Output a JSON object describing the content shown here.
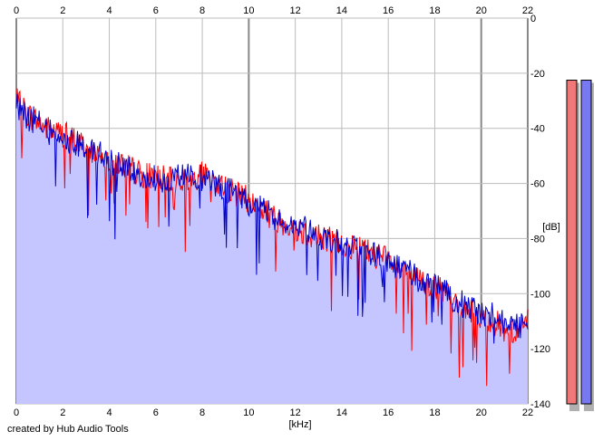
{
  "footer_text": "created by Hub Audio Tools",
  "chart_data": {
    "type": "line",
    "title": "",
    "xlabel": "[kHz]",
    "ylabel": "[dB]",
    "x_unit": "kHz",
    "y_unit": "dB",
    "xlim": [
      0,
      22
    ],
    "ylim": [
      -140,
      0
    ],
    "x_ticks": [
      "0",
      "2",
      "4",
      "6",
      "8",
      "10",
      "12",
      "14",
      "16",
      "18",
      "20",
      "22"
    ],
    "y_ticks": [
      "0",
      "-20",
      "-40",
      "-60",
      "-80",
      "-100",
      "-120",
      "-140"
    ],
    "grid": true,
    "fill_under": true,
    "colors": {
      "fill": "#c5c5ff",
      "series_red": "#ff0000",
      "series_blue": "#0000cc",
      "grid": "#bbbbbb",
      "grid_major": "#888888",
      "meter_red": "#f07878",
      "meter_blue": "#7878f0"
    },
    "series": [
      {
        "color": "red",
        "x": [
          0,
          0.5,
          1,
          1.5,
          2,
          2.5,
          3,
          3.5,
          4,
          4.5,
          5,
          5.5,
          6,
          6.5,
          7,
          7.5,
          8,
          8.5,
          9,
          9.5,
          10,
          10.5,
          11,
          11.5,
          12,
          12.5,
          13,
          13.5,
          14,
          14.5,
          15,
          15.5,
          16,
          16.5,
          17,
          17.5,
          18,
          18.5,
          19,
          19.5,
          20,
          20.5,
          21,
          21.5,
          22
        ],
        "y": [
          -30,
          -35,
          -38,
          -41,
          -42,
          -44,
          -47,
          -49,
          -51,
          -53,
          -55,
          -57,
          -57,
          -59,
          -59,
          -58,
          -57,
          -59,
          -62,
          -64,
          -66,
          -69,
          -72,
          -74,
          -76,
          -78,
          -79,
          -80,
          -82,
          -83,
          -84,
          -86,
          -88,
          -91,
          -93,
          -96,
          -98,
          -100,
          -104,
          -106,
          -108,
          -110,
          -113,
          -114,
          -110
        ]
      },
      {
        "color": "blue",
        "x": [
          0,
          0.5,
          1,
          1.5,
          2,
          2.5,
          3,
          3.5,
          4,
          4.5,
          5,
          5.5,
          6,
          6.5,
          7,
          7.5,
          8,
          8.5,
          9,
          9.5,
          10,
          10.5,
          11,
          11.5,
          12,
          12.5,
          13,
          13.5,
          14,
          14.5,
          15,
          15.5,
          16,
          16.5,
          17,
          17.5,
          18,
          18.5,
          19,
          19.5,
          20,
          20.5,
          21,
          21.5,
          22
        ],
        "y": [
          -32,
          -36,
          -38,
          -42,
          -44,
          -45,
          -47,
          -49,
          -52,
          -54,
          -55,
          -57,
          -58,
          -59,
          -58,
          -57,
          -58,
          -60,
          -62,
          -64,
          -67,
          -69,
          -72,
          -74,
          -75,
          -77,
          -79,
          -80,
          -82,
          -84,
          -85,
          -86,
          -88,
          -91,
          -93,
          -96,
          -97,
          -100,
          -103,
          -105,
          -107,
          -108,
          -110,
          -112,
          -110
        ]
      }
    ],
    "meters": [
      {
        "color": "red",
        "level_db": -12
      },
      {
        "color": "blue",
        "level_db": -12
      }
    ]
  }
}
